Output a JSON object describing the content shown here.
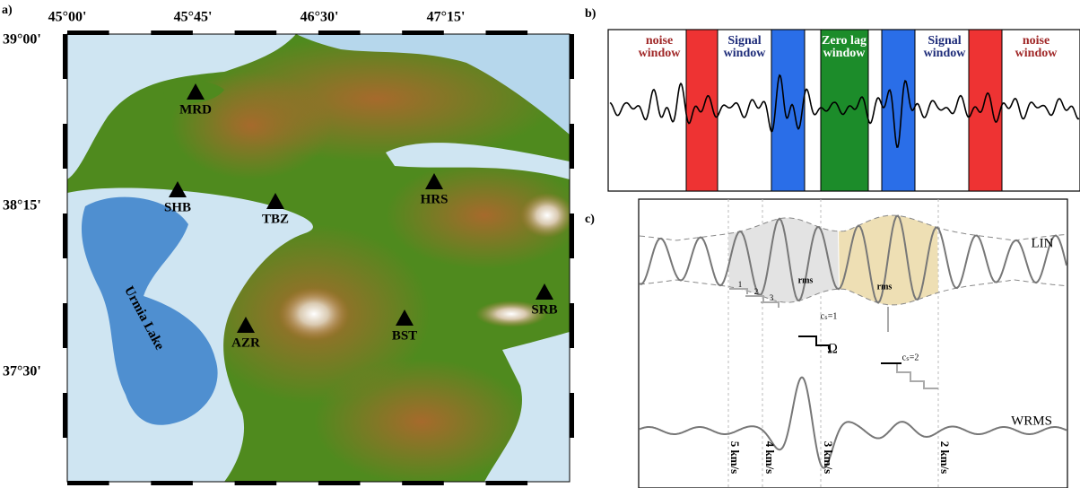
{
  "panel_labels": [
    "a)",
    "b)",
    "c)"
  ],
  "map": {
    "x_ticks": [
      "45°00'",
      "45°45'",
      "46°30'",
      "47°15'"
    ],
    "y_ticks": [
      "39°00'",
      "38°15'",
      "37°30'"
    ],
    "stations": [
      "MRD",
      "SHB",
      "TBZ",
      "HRS",
      "AZR",
      "BST",
      "SRB"
    ],
    "lake": "Urmia Lake"
  },
  "windows": [
    [
      "noise",
      "window"
    ],
    [
      "Signal",
      "window"
    ],
    [
      "Zero lag",
      "window"
    ],
    [
      "Signal",
      "window"
    ],
    [
      "noise",
      "window"
    ]
  ],
  "stack": {
    "lin": "LIN",
    "wrms": "WRMS",
    "rms": [
      "rms",
      "rms"
    ],
    "steps": [
      "1",
      "2",
      "3"
    ],
    "omega": "Ω",
    "cs": [
      "cₛ=1",
      "cₛ=2"
    ],
    "velocities": [
      "5 km/s",
      "4 km/s",
      "3 km/s",
      "2 km/s"
    ]
  }
}
